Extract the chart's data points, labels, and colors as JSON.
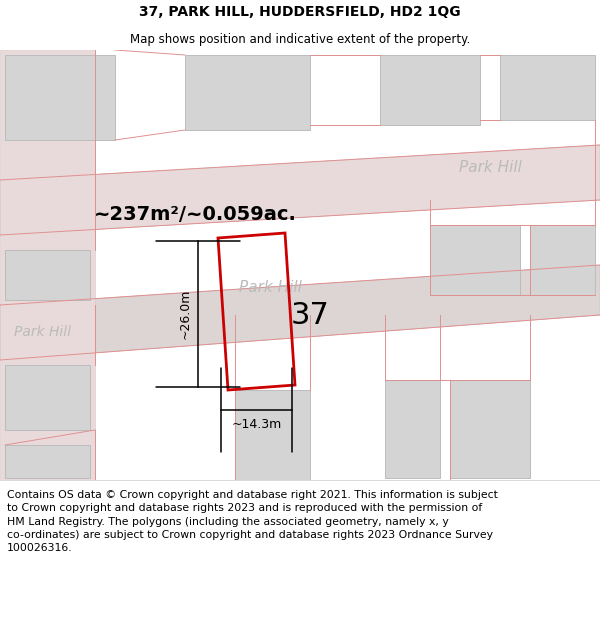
{
  "title": "37, PARK HILL, HUDDERSFIELD, HD2 1QG",
  "subtitle": "Map shows position and indicative extent of the property.",
  "title_fontsize": 10,
  "subtitle_fontsize": 8.5,
  "footer_text": "Contains OS data © Crown copyright and database right 2021. This information is subject\nto Crown copyright and database rights 2023 and is reproduced with the permission of\nHM Land Registry. The polygons (including the associated geometry, namely x, y\nco-ordinates) are subject to Crown copyright and database rights 2023 Ordnance Survey\n100026316.",
  "footer_fontsize": 7.8,
  "map_bg": "#f2efef",
  "road_fill": "#e8dada",
  "road_fill2": "#ddd4d4",
  "building_fill": "#d4d4d4",
  "building_edge": "#bcbcbc",
  "plot_color": "#cc0000",
  "plot_lw": 2.0,
  "area_label": "~237m²/~0.059ac.",
  "area_fontsize": 14,
  "number_label": "37",
  "number_fontsize": 22,
  "dim_h_label": "~14.3m",
  "dim_v_label": "~26.0m",
  "street_color": "#bbbbbb",
  "street_fontsize": 11,
  "line_color": "#e09090",
  "line_color2": "#d08080"
}
